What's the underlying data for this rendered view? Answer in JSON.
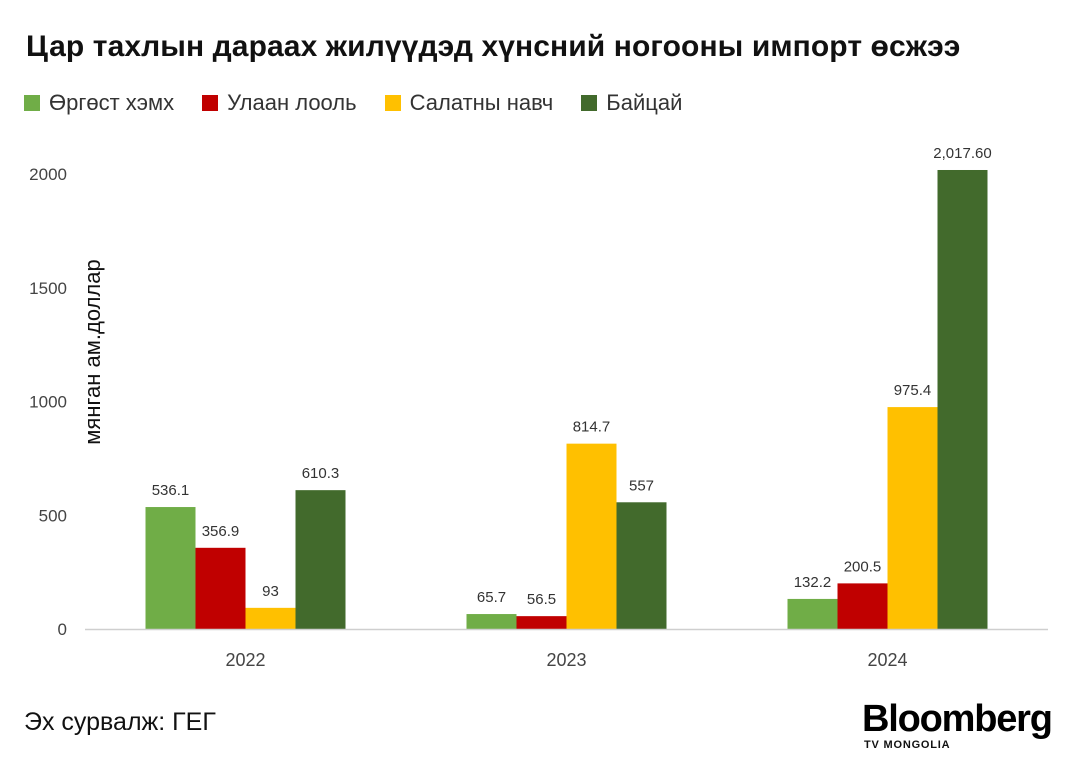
{
  "title": "Цар тахлын дараах жилүүдэд хүнсний ногооны импорт өсжээ",
  "source": "Эх сурвалж: ГЕГ",
  "logo": {
    "word": "Bloomberg",
    "sub": "TV MONGOLIA"
  },
  "colors": {
    "Өргөст хэмх": "#70ad47",
    "Улаан лооль": "#c00000",
    "Салатны навч": "#ffc000",
    "Байцай": "#426a2c"
  },
  "chart_data": {
    "type": "bar",
    "title": "Цар тахлын дараах жилүүдэд хүнсний ногооны импорт өсжээ",
    "xlabel": "",
    "ylabel": "мянган ам.доллар",
    "categories": [
      "2022",
      "2023",
      "2024"
    ],
    "ylim": [
      0,
      2300
    ],
    "yticks": [
      0,
      500,
      1000,
      1500,
      2000
    ],
    "legend_position": "top-left",
    "grid": false,
    "series": [
      {
        "name": "Өргөст хэмх",
        "values": [
          536.1,
          65.7,
          132.2
        ],
        "labels": [
          "536.1",
          "65.7",
          "132.2"
        ]
      },
      {
        "name": "Улаан лооль",
        "values": [
          356.9,
          56.5,
          200.5
        ],
        "labels": [
          "356.9",
          "56.5",
          "200.5"
        ]
      },
      {
        "name": "Салатны навч",
        "values": [
          93,
          814.7,
          975.4
        ],
        "labels": [
          "93",
          "814.7",
          "975.4"
        ]
      },
      {
        "name": "Байцай",
        "values": [
          610.3,
          557,
          2017.6
        ],
        "labels": [
          "610.3",
          "557",
          "2,017.60"
        ]
      }
    ]
  }
}
